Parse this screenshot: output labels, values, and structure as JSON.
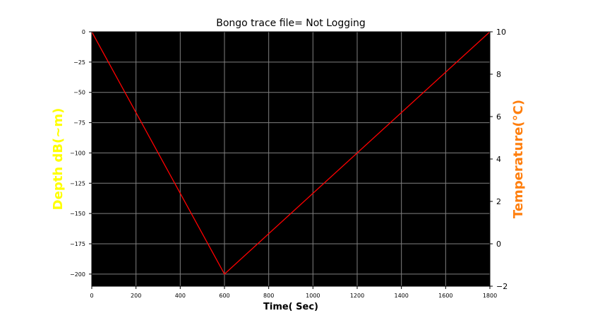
{
  "chart_data": {
    "type": "line",
    "title": "Bongo trace file= Not Logging",
    "xlabel": "Time( Sec)",
    "ylabel": "Depth dB(~m)",
    "ylabel_right": "Temperature(°C)",
    "xlim": [
      0,
      1800
    ],
    "ylim": [
      -210,
      0
    ],
    "ylim_right": [
      -2,
      10
    ],
    "xticks": [
      0,
      200,
      400,
      600,
      800,
      1000,
      1200,
      1400,
      1600,
      1800
    ],
    "yticks": [
      0,
      -25,
      -50,
      -75,
      -100,
      -125,
      -150,
      -175,
      -200
    ],
    "yticks_right": [
      10,
      8,
      6,
      4,
      2,
      0,
      -2
    ],
    "grid": true,
    "series": [
      {
        "x": [
          0,
          600,
          1800
        ],
        "y": [
          0,
          -200,
          0
        ],
        "color": "#ff0000"
      }
    ],
    "colors": {
      "plot_background": "#000000",
      "grid": "#808080",
      "ylabel": "#ffff00",
      "ylabel_right": "#ff7f0e"
    }
  }
}
